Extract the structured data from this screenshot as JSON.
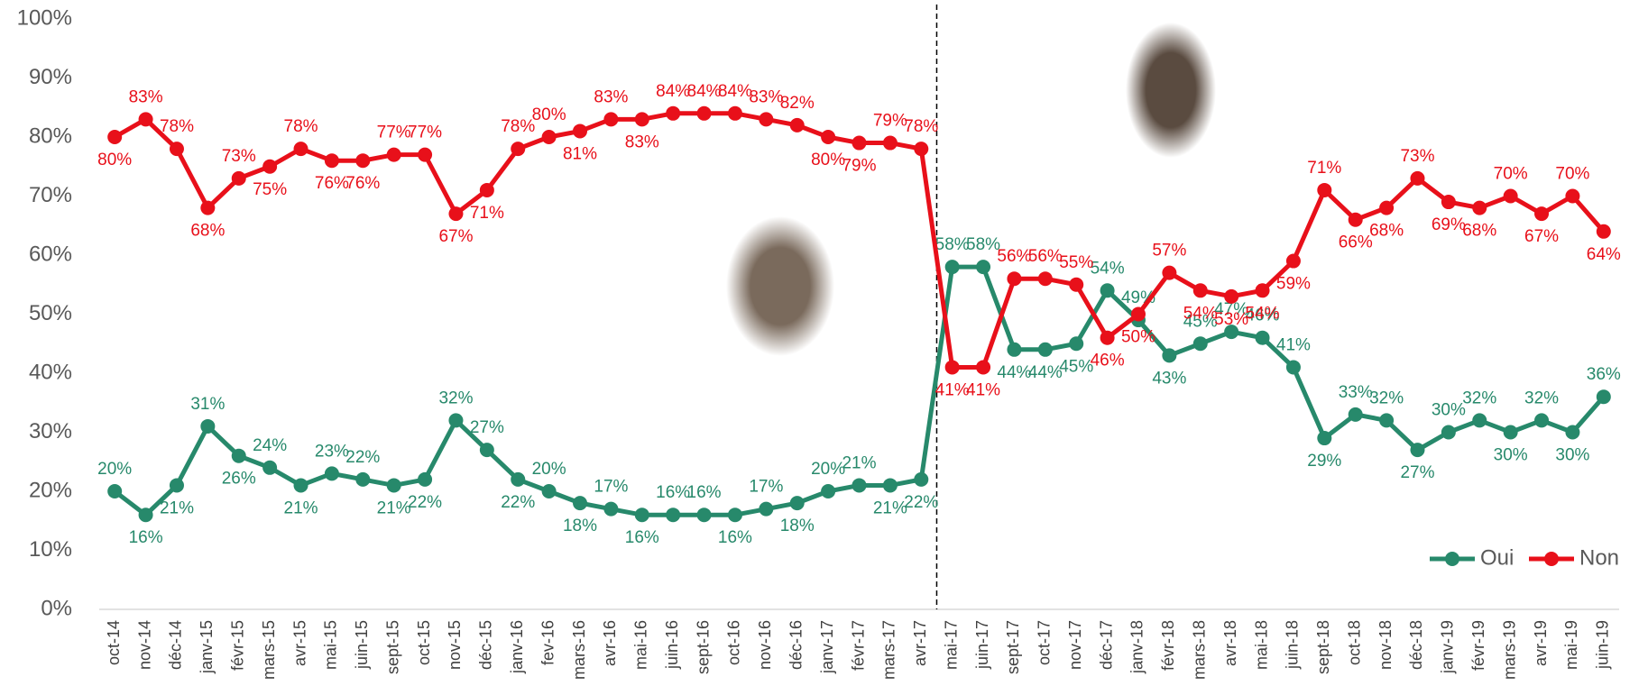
{
  "chart_data": {
    "type": "line",
    "categories": [
      "oct-14",
      "nov-14",
      "déc-14",
      "janv-15",
      "févr-15",
      "mars-15",
      "avr-15",
      "mai-15",
      "juin-15",
      "sept-15",
      "oct-15",
      "nov-15",
      "déc-15",
      "janv-16",
      "fev-16",
      "mars-16",
      "avr-16",
      "mai-16",
      "juin-16",
      "sept-16",
      "oct-16",
      "nov-16",
      "déc-16",
      "janv-17",
      "févr-17",
      "mars-17",
      "avr-17",
      "mai-17",
      "juin-17",
      "sept-17",
      "oct-17",
      "nov-17",
      "déc-17",
      "janv-18",
      "févr-18",
      "mars-18",
      "avr-18",
      "mai-18",
      "juin-18",
      "sept-18",
      "oct-18",
      "nov-18",
      "déc-18",
      "janv-19",
      "févr-19",
      "mars-19",
      "avr-19",
      "mai-19",
      "juin-19"
    ],
    "series": [
      {
        "name": "Oui",
        "color": "#27896b",
        "values": [
          20,
          16,
          21,
          31,
          26,
          24,
          21,
          23,
          22,
          21,
          22,
          32,
          27,
          22,
          20,
          18,
          17,
          16,
          16,
          16,
          16,
          17,
          18,
          20,
          21,
          21,
          22,
          58,
          58,
          44,
          44,
          45,
          54,
          49,
          43,
          45,
          47,
          46,
          41,
          29,
          33,
          32,
          27,
          30,
          32,
          30,
          32,
          30,
          36
        ],
        "value_labels": [
          "20%",
          "16%",
          "21%",
          "31%",
          "26%",
          "24%",
          "21%",
          "23%",
          "22%",
          "21%",
          "22%",
          "32%",
          "27%",
          "22%",
          "20%",
          "18%",
          "17%",
          "16%",
          "16%",
          "16%",
          "16%",
          "17%",
          "18%",
          "20%",
          "21%",
          "21%",
          "22%",
          "58%",
          "58%",
          "44%",
          "44%",
          "45%",
          "54%",
          "49%",
          "43%",
          "45%",
          "47%",
          "46%",
          "41%",
          "29%",
          "33%",
          "32%",
          "27%",
          "30%",
          "32%",
          "30%",
          "32%",
          "30%",
          "36%"
        ]
      },
      {
        "name": "Non",
        "color": "#e8101a",
        "values": [
          80,
          83,
          78,
          68,
          73,
          75,
          78,
          76,
          76,
          77,
          77,
          67,
          71,
          78,
          80,
          81,
          83,
          83,
          84,
          84,
          84,
          83,
          82,
          80,
          79,
          79,
          78,
          41,
          41,
          56,
          56,
          55,
          46,
          50,
          57,
          54,
          53,
          54,
          59,
          71,
          66,
          68,
          73,
          69,
          68,
          70,
          67,
          70,
          64
        ],
        "value_labels": [
          "80%",
          "83%",
          "78%",
          "68%",
          "73%",
          "75%",
          "78%",
          "76%",
          "76%",
          "77%",
          "77%",
          "67%",
          "71%",
          "78%",
          "80%",
          "81%",
          "83%",
          "83%",
          "84%",
          "84%",
          "84%",
          "83%",
          "82%",
          "80%",
          "79%",
          "79%",
          "78%",
          "41%",
          "41%",
          "56%",
          "56%",
          "55%",
          "46%",
          "50%",
          "57%",
          "54%",
          "53%",
          "54%",
          "59%",
          "71%",
          "66%",
          "68%",
          "73%",
          "69%",
          "68%",
          "70%",
          "67%",
          "70%",
          "64%"
        ]
      }
    ],
    "ylim": [
      0,
      100
    ],
    "yticks": [
      {
        "value": 0,
        "label": "0%"
      },
      {
        "value": 10,
        "label": "10%"
      },
      {
        "value": 20,
        "label": "20%"
      },
      {
        "value": 30,
        "label": "30%"
      },
      {
        "value": 40,
        "label": "40%"
      },
      {
        "value": 50,
        "label": "50%"
      },
      {
        "value": 60,
        "label": "60%"
      },
      {
        "value": 70,
        "label": "70%"
      },
      {
        "value": 80,
        "label": "80%"
      },
      {
        "value": 90,
        "label": "90%"
      },
      {
        "value": 100,
        "label": "100%"
      }
    ],
    "grid": false,
    "legend": "bottom-right"
  }
}
